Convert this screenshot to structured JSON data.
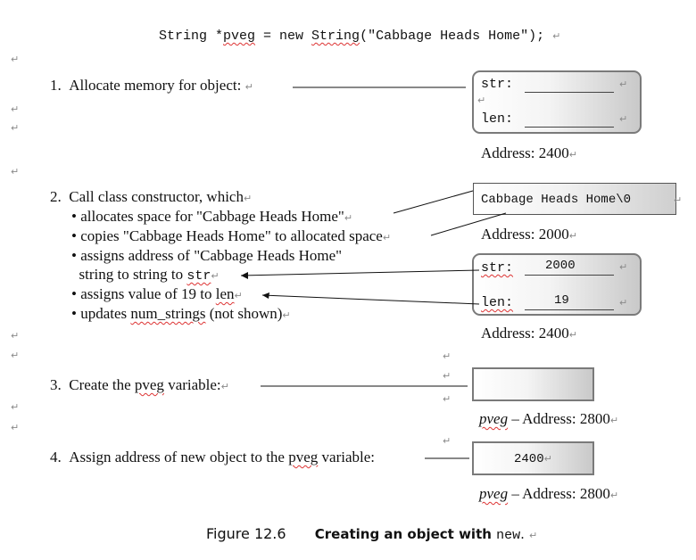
{
  "code_line": {
    "prefix": "String *",
    "var": "pveg",
    "middle": " = new ",
    "cls": "String",
    "suffix": "(\"Cabbage Heads Home\");"
  },
  "step1": {
    "num": "1.",
    "text": "Allocate memory for object:"
  },
  "box1": {
    "str_label": "str:",
    "len_label": "len:",
    "address": "Address: 2400"
  },
  "step2": {
    "num": "2.",
    "text": "Call class constructor, which",
    "bullets": [
      "• allocates space for \"Cabbage Heads Home\"",
      "• copies \"Cabbage Heads Home\" to allocated space",
      "• assigns address of \"Cabbage Heads Home\"",
      "  string to string to ",
      "str",
      "• assigns value of 19 to ",
      "len",
      "• updates ",
      "num_strings",
      " (not shown)"
    ]
  },
  "string_box": {
    "value": "Cabbage Heads Home\\0",
    "address": "Address: 2000"
  },
  "box2": {
    "str_label": "str:",
    "str_value": "2000",
    "len_label": "len:",
    "len_value": "19",
    "address": "Address: 2400"
  },
  "step3": {
    "num": "3.",
    "text_a": "Create the ",
    "var": "pveg",
    "text_b": " variable:"
  },
  "pveg_box1": {
    "var": "pveg",
    "address": " – Address: 2800"
  },
  "step4": {
    "num": "4.",
    "text_a": "Assign address of new object to the ",
    "var": "pveg",
    "text_b": " variable:"
  },
  "pveg_box2": {
    "value": "2400",
    "var": "pveg",
    "address": " – Address: 2800"
  },
  "caption": {
    "figure": "Figure 12.6",
    "title": "Creating an object with ",
    "code": "new",
    "period": "."
  },
  "para_mark": "↵"
}
